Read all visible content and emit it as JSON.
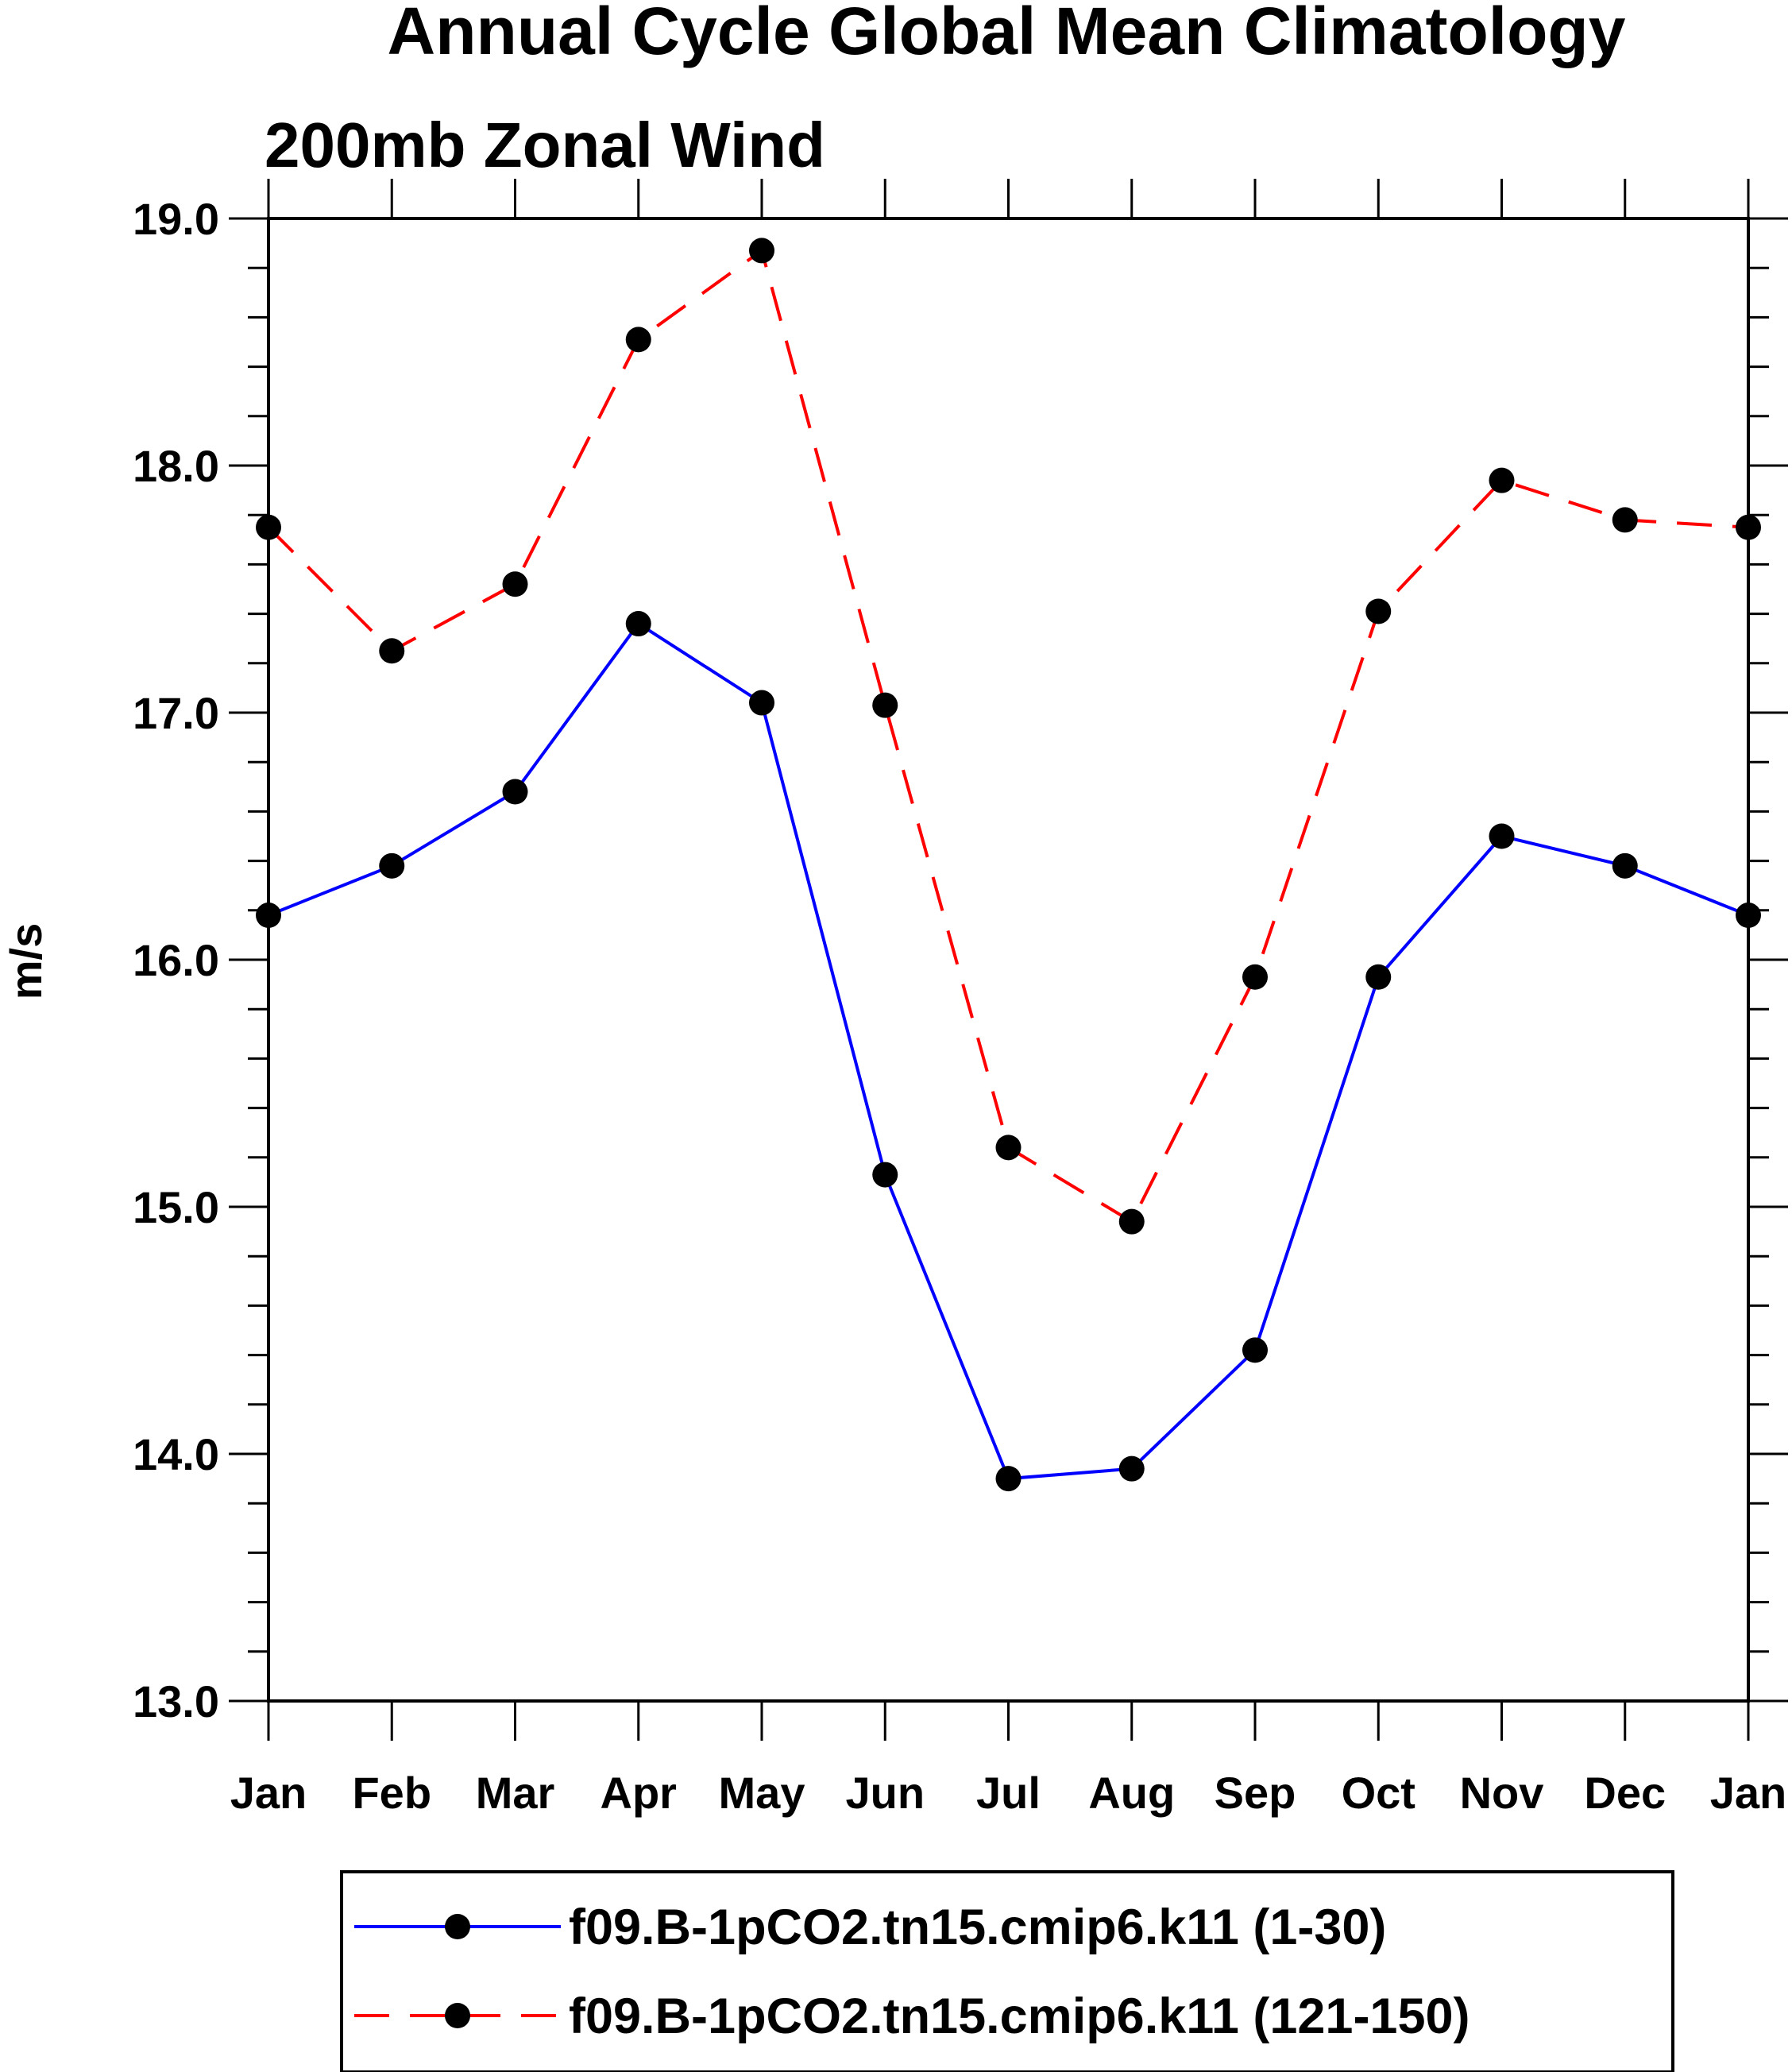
{
  "chart_data": {
    "type": "line",
    "title": "Annual Cycle Global Mean Climatology",
    "subtitle": "200mb Zonal Wind",
    "xlabel": "",
    "ylabel": "m/s",
    "categories": [
      "Jan",
      "Feb",
      "Mar",
      "Apr",
      "May",
      "Jun",
      "Jul",
      "Aug",
      "Sep",
      "Oct",
      "Nov",
      "Dec",
      "Jan"
    ],
    "ylim": [
      13.0,
      19.0
    ],
    "yticks": [
      "13.0",
      "14.0",
      "15.0",
      "16.0",
      "17.0",
      "18.0",
      "19.0"
    ],
    "grid": false,
    "legend_position": "bottom",
    "series": [
      {
        "name": "f09.B-1pCO2.tn15.cmip6.k11 (1-30)",
        "color": "#0000ff",
        "line_style": "solid",
        "marker": "filled-circle",
        "values": [
          16.18,
          16.38,
          16.68,
          17.36,
          17.04,
          15.13,
          13.9,
          13.94,
          14.42,
          15.93,
          16.5,
          16.38,
          16.18
        ]
      },
      {
        "name": "f09.B-1pCO2.tn15.cmip6.k11 (121-150)",
        "color": "#ff0000",
        "line_style": "dashed",
        "marker": "filled-circle",
        "values": [
          17.75,
          17.25,
          17.52,
          18.51,
          18.87,
          17.03,
          15.24,
          14.94,
          15.93,
          17.41,
          17.94,
          17.78,
          17.75
        ]
      }
    ]
  }
}
